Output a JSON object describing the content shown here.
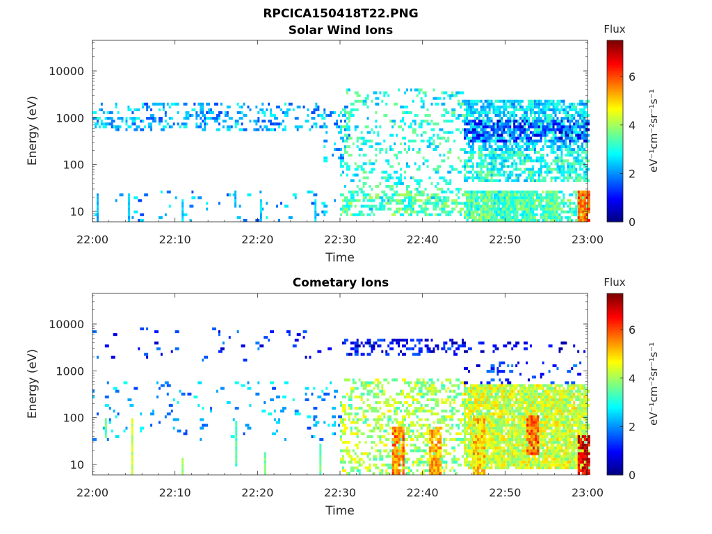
{
  "figure": {
    "filename": "RPCICA150418T22.PNG"
  },
  "chart_data": [
    {
      "type": "heatmap",
      "title": "Solar Wind Ions",
      "xlabel": "Time",
      "ylabel": "Energy (eV)",
      "x_ticks": [
        "22:00",
        "22:10",
        "22:20",
        "22:30",
        "22:40",
        "22:50",
        "23:00"
      ],
      "y_ticks": [
        "10",
        "100",
        "1000",
        "10000"
      ],
      "y_scale": "log",
      "ylim": [
        6,
        45000
      ],
      "xlim": [
        "22:00",
        "23:00"
      ],
      "colorbar": {
        "label": "Flux",
        "unit": "eV⁻¹cm⁻²sr⁻¹s⁻¹",
        "ticks": [
          "0",
          "2",
          "4",
          "6"
        ],
        "range": [
          0,
          7.5
        ],
        "colormap": "jet"
      },
      "bands": [
        {
          "t0": 0,
          "t1": 28,
          "e0": 550,
          "e1": 2200,
          "density": 0.22,
          "v": 2.2
        },
        {
          "t0": 0,
          "t1": 5,
          "e0": 600,
          "e1": 1000,
          "density": 0.18,
          "v": 2.4
        },
        {
          "t0": 28,
          "t1": 31,
          "e0": 120,
          "e1": 1800,
          "density": 0.18,
          "v": 2.3
        },
        {
          "t0": 30,
          "t1": 45,
          "e0": 10,
          "e1": 4000,
          "density": 0.15,
          "v": 3.0
        },
        {
          "t0": 30,
          "t1": 45,
          "e0": 8,
          "e1": 28,
          "density": 0.35,
          "v": 3.4
        },
        {
          "t0": 45,
          "t1": 60,
          "e0": 200,
          "e1": 2500,
          "density": 0.6,
          "v": 2.6
        },
        {
          "t0": 45,
          "t1": 60,
          "e0": 300,
          "e1": 900,
          "density": 0.35,
          "v": 1.2
        },
        {
          "t0": 45,
          "t1": 60,
          "e0": 40,
          "e1": 200,
          "density": 0.5,
          "v": 3.0
        },
        {
          "t0": 45,
          "t1": 60,
          "e0": 6,
          "e1": 28,
          "density": 0.55,
          "v": 3.4
        },
        {
          "t0": 0,
          "t1": 30,
          "e0": 6,
          "e1": 28,
          "density": 0.03,
          "v": 2.2
        }
      ],
      "columns": [
        {
          "t": 0.5,
          "e0": 6,
          "e1": 25,
          "v": 2.2
        },
        {
          "t": 4.3,
          "e0": 6,
          "e1": 25,
          "v": 2.3
        },
        {
          "t": 10.8,
          "e0": 6,
          "e1": 18,
          "v": 2.5
        },
        {
          "t": 17.2,
          "e0": 12,
          "e1": 28,
          "v": 2.4
        },
        {
          "t": 20.3,
          "e0": 6,
          "e1": 18,
          "v": 2.4
        },
        {
          "t": 26.9,
          "e0": 6,
          "e1": 18,
          "v": 2.6
        }
      ],
      "blocks": [
        {
          "t": 46.0,
          "e0": 6,
          "e1": 28,
          "v": 3.3
        },
        {
          "t": 47.7,
          "e0": 6,
          "e1": 28,
          "v": 3.5
        },
        {
          "t": 49.3,
          "e0": 6,
          "e1": 28,
          "v": 3.2
        },
        {
          "t": 50.8,
          "e0": 6,
          "e1": 28,
          "v": 3.4
        },
        {
          "t": 52.7,
          "e0": 6,
          "e1": 28,
          "v": 3.3
        },
        {
          "t": 55.6,
          "e0": 6,
          "e1": 28,
          "v": 3.5
        },
        {
          "t": 59.5,
          "e0": 6,
          "e1": 28,
          "v": 5.8
        }
      ]
    },
    {
      "type": "heatmap",
      "title": "Cometary Ions",
      "xlabel": "Time",
      "ylabel": "Energy (eV)",
      "x_ticks": [
        "22:00",
        "22:10",
        "22:20",
        "22:30",
        "22:40",
        "22:50",
        "23:00"
      ],
      "y_ticks": [
        "10",
        "100",
        "1000",
        "10000"
      ],
      "y_scale": "log",
      "ylim": [
        6,
        45000
      ],
      "xlim": [
        "22:00",
        "23:00"
      ],
      "colorbar": {
        "label": "Flux",
        "unit": "eV⁻¹cm⁻²sr⁻¹s⁻¹",
        "ticks": [
          "0",
          "2",
          "4",
          "6"
        ],
        "range": [
          0,
          7.5
        ],
        "colormap": "jet"
      },
      "bands": [
        {
          "t0": 0,
          "t1": 30,
          "e0": 1500,
          "e1": 8000,
          "density": 0.04,
          "v": 1.3
        },
        {
          "t0": 0,
          "t1": 30,
          "e0": 30,
          "e1": 600,
          "density": 0.05,
          "v": 2.2
        },
        {
          "t0": 30,
          "t1": 45,
          "e0": 2000,
          "e1": 5000,
          "density": 0.25,
          "v": 1.0
        },
        {
          "t0": 30,
          "t1": 45,
          "e0": 6,
          "e1": 700,
          "density": 0.3,
          "v": 4.0
        },
        {
          "t0": 45,
          "t1": 60,
          "e0": 8,
          "e1": 500,
          "density": 0.85,
          "v": 4.3
        },
        {
          "t0": 45,
          "t1": 60,
          "e0": 500,
          "e1": 1500,
          "density": 0.12,
          "v": 1.2
        },
        {
          "t0": 45,
          "t1": 60,
          "e0": 2500,
          "e1": 4500,
          "density": 0.15,
          "v": 0.6
        }
      ],
      "columns": [
        {
          "t": 1.5,
          "e0": 35,
          "e1": 100,
          "v": 3.4
        },
        {
          "t": 4.7,
          "e0": 6,
          "e1": 100,
          "v": 4.2
        },
        {
          "t": 10.8,
          "e0": 6,
          "e1": 14,
          "v": 4.1
        },
        {
          "t": 17.3,
          "e0": 9,
          "e1": 80,
          "v": 3.3
        },
        {
          "t": 20.8,
          "e0": 6,
          "e1": 18,
          "v": 3.6
        },
        {
          "t": 27.5,
          "e0": 6,
          "e1": 28,
          "v": 3.6
        }
      ],
      "blocks": [
        {
          "t": 37.0,
          "e0": 6,
          "e1": 60,
          "v": 5.6
        },
        {
          "t": 41.5,
          "e0": 6,
          "e1": 60,
          "v": 5.2
        },
        {
          "t": 46.8,
          "e0": 6,
          "e1": 120,
          "v": 5.0
        },
        {
          "t": 53.3,
          "e0": 15,
          "e1": 120,
          "v": 5.8
        },
        {
          "t": 59.5,
          "e0": 6,
          "e1": 40,
          "v": 6.8
        }
      ]
    }
  ]
}
